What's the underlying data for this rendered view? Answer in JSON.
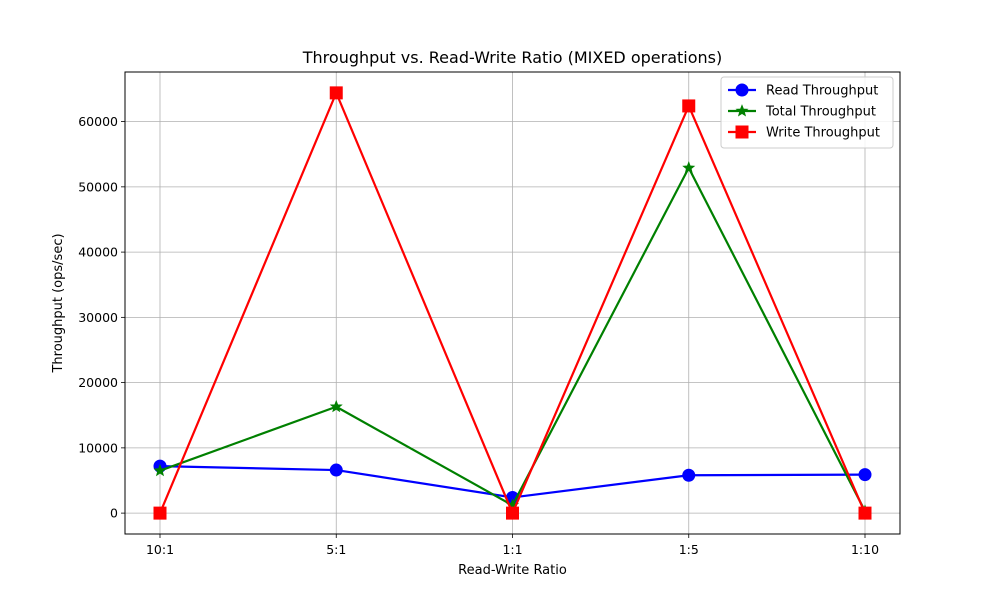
{
  "chart_data": {
    "type": "line",
    "title": "Throughput vs. Read-Write Ratio (MIXED operations)",
    "xlabel": "Read-Write Ratio",
    "ylabel": "Throughput (ops/sec)",
    "categories": [
      "10:1",
      "5:1",
      "1:1",
      "1:5",
      "1:10"
    ],
    "ylim": [
      -3200,
      67600
    ],
    "yticks": [
      0,
      10000,
      20000,
      30000,
      40000,
      50000,
      60000
    ],
    "grid": true,
    "legend_position": "top-right",
    "series": [
      {
        "name": "Read Throughput",
        "color": "#0000ff",
        "marker": "circle",
        "values": [
          7200,
          6600,
          2400,
          5800,
          5900
        ]
      },
      {
        "name": "Total Throughput",
        "color": "#008000",
        "marker": "star",
        "values": [
          6500,
          16300,
          1200,
          52900,
          300
        ]
      },
      {
        "name": "Write Throughput",
        "color": "#ff0000",
        "marker": "square",
        "values": [
          0,
          64400,
          0,
          62400,
          0
        ]
      }
    ]
  }
}
